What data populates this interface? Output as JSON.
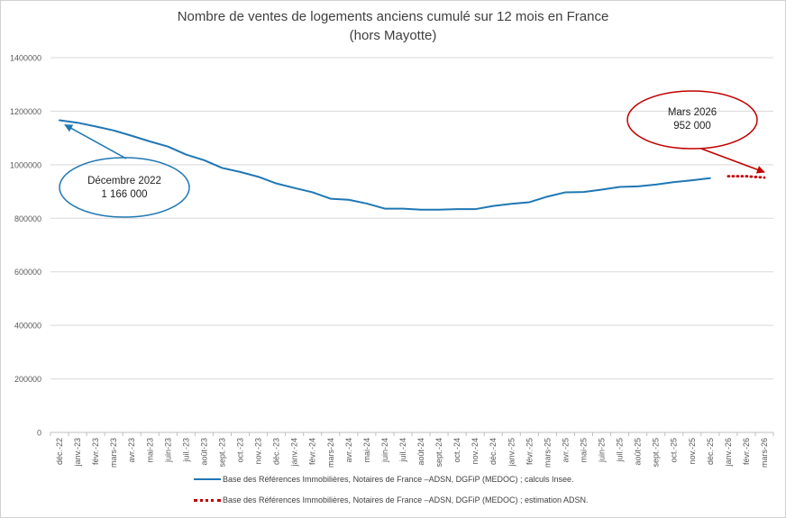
{
  "chart_data": {
    "type": "line",
    "title": "Nombre de ventes de logements anciens cumulé sur 12 mois en France",
    "subtitle": "(hors Mayotte)",
    "xlabel": "",
    "ylabel": "",
    "ylim": [
      0,
      1400000
    ],
    "yticks": [
      "0",
      "200000",
      "400000",
      "600000",
      "800000",
      "1000000",
      "1200000",
      "1400000"
    ],
    "grid": true,
    "legend_position": "bottom",
    "categories": [
      "déc.-22",
      "janv.-23",
      "févr.-23",
      "mars-23",
      "avr.-23",
      "mai-23",
      "juin-23",
      "juil.-23",
      "août-23",
      "sept.-23",
      "oct.-23",
      "nov.-23",
      "déc.-23",
      "janv.-24",
      "févr.-24",
      "mars-24",
      "avr.-24",
      "mai-24",
      "juin-24",
      "juil.-24",
      "août-24",
      "sept.-24",
      "oct.-24",
      "nov.-24",
      "déc.-24",
      "janv.-25",
      "févr.-25",
      "mars-25",
      "avr.-25",
      "mai-25",
      "juin-25",
      "juil.-25",
      "août-25",
      "sept.-25",
      "oct.-25",
      "nov.-25",
      "déc.-25",
      "janv.-26",
      "févr.-26",
      "mars-26"
    ],
    "series": [
      {
        "name": "Base des Références Immobilières, Notaires de France –ADSN, DGFiP (MEDOC) ; calculs Insee.",
        "color": "#1f77b4",
        "style": "solid",
        "values": [
          1166000,
          1157000,
          1143000,
          1128000,
          1108000,
          1087000,
          1068000,
          1038000,
          1017000,
          988000,
          973000,
          955000,
          930000,
          913000,
          897000,
          873000,
          869000,
          855000,
          836000,
          836000,
          832000,
          832000,
          834000,
          834000,
          846000,
          854000,
          860000,
          881000,
          897000,
          898000,
          907000,
          917000,
          919000,
          926000,
          935000,
          942000,
          950000,
          null,
          null,
          null
        ]
      },
      {
        "name": "Base des Références Immobilières, Notaires de France –ADSN, DGFiP (MEDOC) ; estimation ADSN.",
        "color": "#c00000",
        "style": "dotted",
        "values": [
          null,
          null,
          null,
          null,
          null,
          null,
          null,
          null,
          null,
          null,
          null,
          null,
          null,
          null,
          null,
          null,
          null,
          null,
          null,
          null,
          null,
          null,
          null,
          null,
          null,
          null,
          null,
          null,
          null,
          null,
          null,
          null,
          null,
          null,
          null,
          null,
          null,
          957000,
          957000,
          952000
        ]
      }
    ],
    "annotations": [
      {
        "lines": [
          "Décembre 2022",
          "1 166 000"
        ],
        "category": "déc.-22",
        "value": 1166000,
        "color": "#1f77b4"
      },
      {
        "lines": [
          "Mars 2026",
          "952 000"
        ],
        "category": "mars-26",
        "value": 952000,
        "color": "#c00000"
      }
    ]
  }
}
